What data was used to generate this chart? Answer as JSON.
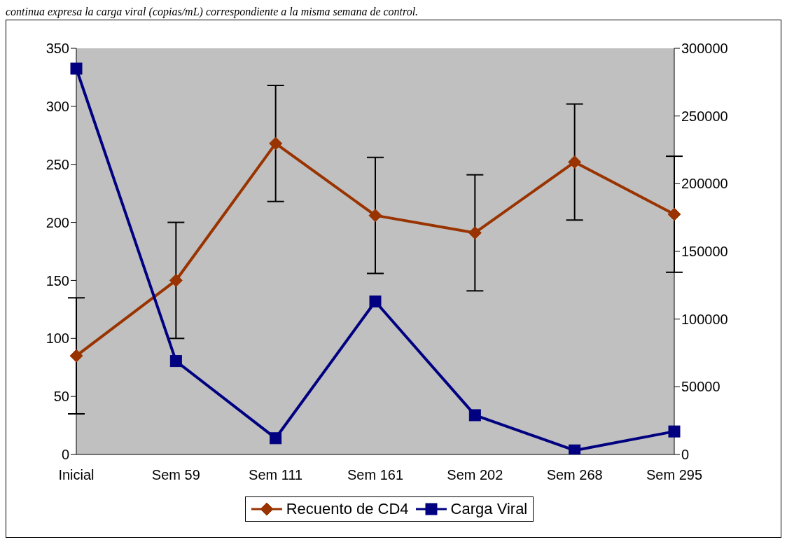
{
  "chart_data": {
    "type": "line",
    "categories": [
      "Inicial",
      "Sem 59",
      "Sem 111",
      "Sem 161",
      "Sem 202",
      "Sem 268",
      "Sem 295"
    ],
    "series": [
      {
        "name": "Recuento de CD4",
        "color": "#993300",
        "marker": "diamond",
        "values": [
          85,
          150,
          268,
          206,
          191,
          252,
          207
        ],
        "errors": [
          50,
          50,
          50,
          50,
          50,
          50,
          50
        ]
      },
      {
        "name": "Carga Viral",
        "color": "#000080",
        "marker": "square",
        "axis": "y2",
        "values": [
          285000,
          69000,
          12000,
          113000,
          29000,
          3000,
          17000
        ]
      }
    ],
    "ylim": [
      0,
      350
    ],
    "yticks": [
      0,
      50,
      100,
      150,
      200,
      250,
      300,
      350
    ],
    "y2lim": [
      0,
      300000
    ],
    "y2ticks": [
      0,
      50000,
      100000,
      150000,
      200000,
      250000,
      300000
    ],
    "grid": false,
    "legend": "bottom",
    "line_style": "solid",
    "annotations": [
      "continua expresa la carga viral (copias/mL) correspondiente a la misma semana de control."
    ]
  }
}
